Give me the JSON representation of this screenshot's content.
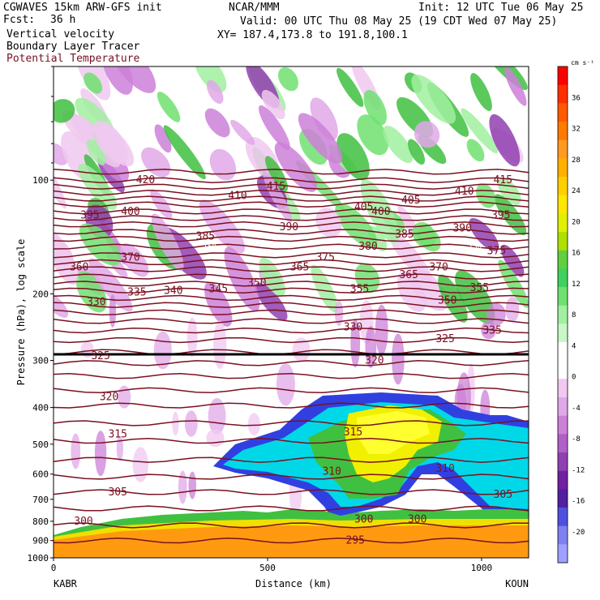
{
  "header": {
    "title_left": "CGWAVES 15km ARW-GFS init",
    "fcst_label": "Fcst:",
    "fcst_value": "36 h",
    "field1": "Vertical velocity",
    "field2": "Boundary Layer Tracer",
    "field3": "Potential Temperature",
    "org": "NCAR/MMM",
    "init": "Init: 12 UTC Tue 06 May 25",
    "valid": "Valid: 00 UTC Thu 08 May 25 (19 CDT Wed 07 May 25)",
    "xy": "XY= 187.4,173.8 to 191.8,100.1"
  },
  "colors": {
    "isentrope": "#7a1020",
    "tropopause": "#000000"
  },
  "chart_data": {
    "type": "heatmap",
    "title": "Vertical velocity",
    "xlabel": "Distance (km)",
    "ylabel": "Pressure (hPa), log scale",
    "xlim": [
      0,
      1110
    ],
    "ylim": [
      1000,
      50
    ],
    "y_scale": "log",
    "x_ticks": [
      "0",
      "500",
      "1000"
    ],
    "x_tick_values": [
      0,
      500,
      1000
    ],
    "y_ticks": [
      "100",
      "200",
      "300",
      "400",
      "500",
      "600",
      "700",
      "800",
      "900",
      "1000"
    ],
    "y_tick_values": [
      100,
      200,
      300,
      400,
      500,
      600,
      700,
      800,
      900,
      1000
    ],
    "left_endpoint": "KABR",
    "right_endpoint": "KOUN",
    "colorbar": {
      "unit": "cm s⁻¹",
      "labels": [
        "36",
        "32",
        "28",
        "24",
        "20",
        "16",
        "12",
        "8",
        "4",
        "0",
        "-4",
        "-8",
        "-12",
        "-16",
        "-20"
      ],
      "label_values": [
        36,
        32,
        28,
        24,
        20,
        16,
        12,
        8,
        4,
        0,
        -4,
        -8,
        -12,
        -16,
        -20
      ],
      "colors": [
        "#ff0000",
        "#ff3000",
        "#ff5a00",
        "#ff7a00",
        "#ff9a20",
        "#ffb000",
        "#ffd000",
        "#ffe800",
        "#e0f000",
        "#b0e000",
        "#60d040",
        "#40d060",
        "#70e070",
        "#a0f0a0",
        "#c8f8c8",
        "#ffffff",
        "#ffffff",
        "#f0c8f0",
        "#e0a8e8",
        "#cc80d8",
        "#b060c8",
        "#9040b0",
        "#7020a0",
        "#5020a0",
        "#5050e0",
        "#8080f0",
        "#a0a0ff"
      ]
    },
    "isentropes": [
      {
        "label": "420",
        "p": 100,
        "x": 215
      },
      {
        "label": "415",
        "p": 104,
        "x": 520
      },
      {
        "label": "415",
        "p": 100,
        "x": 1050
      },
      {
        "label": "410",
        "p": 110,
        "x": 430
      },
      {
        "label": "410",
        "p": 107,
        "x": 960
      },
      {
        "label": "405",
        "p": 118,
        "x": 725
      },
      {
        "label": "405",
        "p": 113,
        "x": 835
      },
      {
        "label": "400",
        "p": 121,
        "x": 180
      },
      {
        "label": "400",
        "p": 121,
        "x": 765
      },
      {
        "label": "395",
        "p": 124,
        "x": 85
      },
      {
        "label": "395",
        "p": 124,
        "x": 1045
      },
      {
        "label": "390",
        "p": 133,
        "x": 550
      },
      {
        "label": "390",
        "p": 134,
        "x": 955
      },
      {
        "label": "385",
        "p": 141,
        "x": 355
      },
      {
        "label": "385",
        "p": 139,
        "x": 820
      },
      {
        "label": "380",
        "p": 150,
        "x": 735
      },
      {
        "label": "375",
        "p": 160,
        "x": 635
      },
      {
        "label": "375",
        "p": 154,
        "x": 1035
      },
      {
        "label": "370",
        "p": 160,
        "x": 180
      },
      {
        "label": "370",
        "p": 170,
        "x": 900
      },
      {
        "label": "365",
        "p": 170,
        "x": 575
      },
      {
        "label": "365",
        "p": 178,
        "x": 830
      },
      {
        "label": "360",
        "p": 170,
        "x": 60
      },
      {
        "label": "355",
        "p": 194,
        "x": 715
      },
      {
        "label": "355",
        "p": 193,
        "x": 995
      },
      {
        "label": "350",
        "p": 187,
        "x": 475
      },
      {
        "label": "350",
        "p": 208,
        "x": 920
      },
      {
        "label": "345",
        "p": 194,
        "x": 385
      },
      {
        "label": "340",
        "p": 196,
        "x": 280
      },
      {
        "label": "335",
        "p": 198,
        "x": 195
      },
      {
        "label": "335",
        "p": 250,
        "x": 1025
      },
      {
        "label": "330",
        "p": 210,
        "x": 100
      },
      {
        "label": "330",
        "p": 245,
        "x": 700
      },
      {
        "label": "325",
        "p": 292,
        "x": 110
      },
      {
        "label": "325",
        "p": 263,
        "x": 915
      },
      {
        "label": "320",
        "p": 375,
        "x": 130
      },
      {
        "label": "320",
        "p": 300,
        "x": 750
      },
      {
        "label": "315",
        "p": 470,
        "x": 150
      },
      {
        "label": "315",
        "p": 465,
        "x": 700
      },
      {
        "label": "310",
        "p": 590,
        "x": 650
      },
      {
        "label": "310",
        "p": 580,
        "x": 915
      },
      {
        "label": "305",
        "p": 670,
        "x": 150
      },
      {
        "label": "305",
        "p": 680,
        "x": 1050
      },
      {
        "label": "300",
        "p": 800,
        "x": 70
      },
      {
        "label": "300",
        "p": 790,
        "x": 725
      },
      {
        "label": "300",
        "p": 790,
        "x": 850
      },
      {
        "label": "295",
        "p": 900,
        "x": 705
      }
    ],
    "tropopause_label": {
      "label": "150",
      "p": 150,
      "x": 365
    },
    "tropopause_label2": {
      "label": "150",
      "p": 150,
      "x": 985
    }
  }
}
